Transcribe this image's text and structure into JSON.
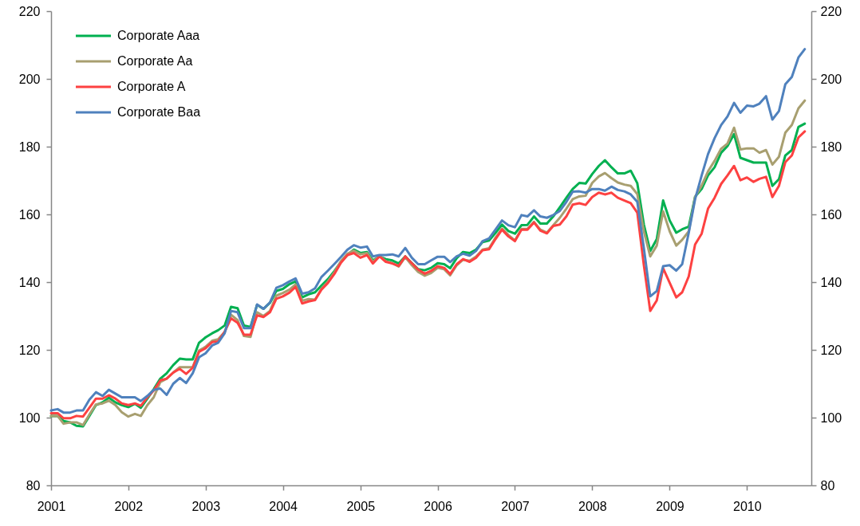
{
  "chart_data": {
    "type": "line",
    "x": [
      "2001-01",
      "2001-02",
      "2001-03",
      "2001-04",
      "2001-05",
      "2001-06",
      "2001-07",
      "2001-08",
      "2001-09",
      "2001-10",
      "2001-11",
      "2001-12",
      "2002-01",
      "2002-02",
      "2002-03",
      "2002-04",
      "2002-05",
      "2002-06",
      "2002-07",
      "2002-08",
      "2002-09",
      "2002-10",
      "2002-11",
      "2002-12",
      "2003-01",
      "2003-02",
      "2003-03",
      "2003-04",
      "2003-05",
      "2003-06",
      "2003-07",
      "2003-08",
      "2003-09",
      "2003-10",
      "2003-11",
      "2003-12",
      "2004-01",
      "2004-02",
      "2004-03",
      "2004-04",
      "2004-05",
      "2004-06",
      "2004-07",
      "2004-08",
      "2004-09",
      "2004-10",
      "2004-11",
      "2004-12",
      "2005-01",
      "2005-02",
      "2005-03",
      "2005-04",
      "2005-05",
      "2005-06",
      "2005-07",
      "2005-08",
      "2005-09",
      "2005-10",
      "2005-11",
      "2005-12",
      "2006-01",
      "2006-02",
      "2006-03",
      "2006-04",
      "2006-05",
      "2006-06",
      "2006-07",
      "2006-08",
      "2006-09",
      "2006-10",
      "2006-11",
      "2006-12",
      "2007-01",
      "2007-02",
      "2007-03",
      "2007-04",
      "2007-05",
      "2007-06",
      "2007-07",
      "2007-08",
      "2007-09",
      "2007-10",
      "2007-11",
      "2007-12",
      "2008-01",
      "2008-02",
      "2008-03",
      "2008-04",
      "2008-05",
      "2008-06",
      "2008-07",
      "2008-08",
      "2008-09",
      "2008-10",
      "2008-11",
      "2008-12",
      "2009-01",
      "2009-02",
      "2009-03",
      "2009-04",
      "2009-05",
      "2009-06",
      "2009-07",
      "2009-08",
      "2009-09",
      "2009-10",
      "2009-11",
      "2009-12",
      "2010-01",
      "2010-02",
      "2010-03",
      "2010-04",
      "2010-05",
      "2010-06",
      "2010-07",
      "2010-08",
      "2010-09",
      "2010-10"
    ],
    "series": [
      {
        "name": "Corporate Aaa",
        "color": "#00b050",
        "values": [
          100.5,
          100.5,
          99.0,
          98.6,
          97.6,
          97.4,
          100.5,
          103.7,
          104.5,
          105.9,
          104.5,
          103.7,
          103.1,
          104.1,
          102.9,
          105.6,
          108.4,
          111.5,
          113.1,
          115.5,
          117.4,
          117.2,
          117.2,
          122.1,
          123.7,
          124.9,
          125.8,
          127.2,
          132.7,
          132.3,
          127.2,
          126.8,
          133.3,
          132.1,
          133.9,
          137.4,
          138.0,
          139.4,
          140.2,
          135.5,
          136.4,
          137.0,
          139.0,
          140.9,
          143.3,
          146.0,
          148.0,
          149.6,
          148.6,
          148.9,
          146.4,
          147.6,
          146.8,
          146.4,
          145.5,
          147.6,
          145.6,
          143.8,
          143.5,
          144.2,
          145.6,
          145.3,
          144.1,
          147.1,
          148.9,
          148.6,
          149.6,
          151.8,
          152.3,
          154.5,
          157.0,
          155.1,
          154.3,
          156.8,
          156.9,
          159.4,
          157.3,
          157.3,
          159.4,
          162.1,
          164.9,
          167.5,
          169.3,
          169.1,
          171.9,
          174.3,
          176.0,
          173.9,
          172.1,
          172.1,
          172.9,
          169.2,
          157.0,
          149.2,
          152.7,
          164.1,
          158.2,
          154.6,
          155.6,
          156.4,
          165.2,
          167.5,
          171.5,
          173.9,
          178.2,
          180.2,
          183.7,
          176.7,
          176.0,
          175.3,
          175.3,
          175.3,
          168.4,
          170.4,
          177.4,
          179.0,
          185.8,
          186.8
        ]
      },
      {
        "name": "Corporate Aa",
        "color": "#a89f70",
        "values": [
          100.5,
          100.5,
          98.2,
          98.6,
          98.6,
          97.8,
          100.9,
          103.9,
          104.2,
          105.0,
          103.7,
          101.6,
          100.3,
          101.1,
          100.5,
          103.7,
          106.0,
          110.5,
          111.5,
          113.3,
          114.9,
          114.9,
          114.9,
          119.8,
          120.9,
          122.7,
          123.1,
          125.3,
          130.4,
          128.8,
          124.1,
          123.8,
          131.1,
          130.0,
          131.5,
          136.0,
          136.8,
          137.8,
          139.3,
          134.5,
          135.0,
          134.8,
          138.0,
          140.2,
          143.0,
          146.2,
          148.4,
          149.3,
          148.2,
          148.6,
          146.0,
          147.8,
          146.2,
          145.6,
          144.6,
          147.4,
          145.0,
          143.0,
          141.9,
          142.7,
          144.2,
          143.8,
          142.0,
          145.0,
          146.6,
          146.3,
          147.5,
          149.6,
          150.0,
          153.1,
          155.8,
          153.9,
          152.3,
          155.7,
          155.7,
          157.8,
          155.5,
          154.6,
          156.8,
          159.0,
          161.7,
          164.5,
          165.3,
          165.5,
          169.3,
          171.2,
          172.2,
          170.7,
          169.4,
          168.8,
          168.4,
          166.0,
          155.0,
          147.6,
          150.8,
          160.9,
          155.0,
          150.8,
          152.5,
          155.0,
          165.2,
          168.5,
          172.7,
          175.8,
          179.4,
          180.9,
          185.6,
          179.2,
          179.5,
          179.5,
          178.2,
          179.0,
          174.7,
          177.0,
          184.1,
          186.4,
          191.3,
          193.6
        ]
      },
      {
        "name": "Corporate A",
        "color": "#fd4141",
        "values": [
          101.3,
          101.3,
          99.8,
          99.8,
          100.5,
          100.3,
          102.9,
          105.6,
          105.6,
          106.6,
          105.6,
          104.2,
          103.7,
          104.2,
          103.5,
          106.0,
          108.0,
          111.0,
          111.5,
          113.3,
          114.4,
          112.9,
          114.7,
          119.4,
          120.5,
          122.3,
          122.5,
          125.3,
          129.3,
          128.0,
          124.5,
          124.5,
          130.2,
          129.7,
          131.1,
          135.1,
          135.8,
          136.9,
          138.6,
          133.7,
          134.3,
          134.7,
          137.8,
          139.8,
          142.5,
          145.7,
          148.0,
          148.6,
          147.2,
          148.0,
          145.5,
          147.6,
          146.0,
          145.5,
          144.8,
          147.6,
          145.6,
          143.7,
          142.5,
          143.3,
          144.7,
          144.2,
          142.4,
          145.3,
          146.8,
          146.0,
          147.2,
          149.4,
          149.7,
          152.7,
          155.5,
          153.5,
          152.1,
          155.5,
          155.5,
          157.6,
          155.2,
          154.4,
          156.6,
          157.0,
          159.4,
          162.9,
          163.3,
          162.8,
          165.1,
          166.4,
          165.9,
          166.4,
          164.9,
          164.1,
          163.3,
          160.5,
          145.0,
          131.5,
          134.6,
          144.1,
          139.8,
          135.5,
          137.0,
          141.7,
          151.1,
          154.3,
          161.7,
          164.9,
          169.0,
          171.5,
          174.3,
          170.1,
          170.9,
          169.6,
          170.5,
          171.1,
          165.1,
          168.4,
          175.4,
          177.4,
          182.7,
          184.5
        ]
      },
      {
        "name": "Corporate Baa",
        "color": "#4f81bd",
        "values": [
          102.1,
          102.5,
          101.5,
          101.5,
          102.1,
          102.1,
          105.3,
          107.5,
          106.4,
          108.2,
          107.1,
          106.0,
          106.0,
          106.0,
          104.9,
          106.4,
          108.2,
          108.6,
          106.7,
          110.0,
          111.7,
          110.2,
          113.1,
          117.8,
          119.0,
          121.3,
          122.1,
          124.9,
          131.5,
          131.1,
          126.4,
          126.4,
          133.4,
          132.1,
          134.0,
          138.3,
          139.1,
          140.2,
          141.1,
          136.6,
          137.0,
          138.2,
          141.5,
          143.4,
          145.4,
          147.4,
          149.6,
          150.9,
          150.2,
          150.5,
          147.6,
          148.0,
          148.0,
          148.2,
          147.6,
          150.1,
          147.2,
          145.3,
          145.3,
          146.4,
          147.5,
          147.5,
          145.9,
          147.6,
          148.4,
          147.8,
          149.2,
          152.1,
          152.9,
          155.5,
          158.2,
          156.8,
          156.2,
          159.8,
          159.4,
          161.2,
          159.4,
          159.0,
          159.8,
          161.0,
          163.7,
          166.7,
          166.8,
          166.4,
          167.5,
          167.5,
          167.0,
          168.2,
          167.2,
          166.8,
          165.9,
          163.7,
          150.0,
          135.8,
          137.4,
          144.7,
          145.0,
          143.4,
          145.3,
          154.6,
          164.5,
          171.5,
          177.8,
          182.5,
          186.4,
          188.9,
          192.9,
          190.0,
          192.1,
          191.9,
          192.7,
          194.9,
          188.0,
          190.5,
          198.4,
          200.6,
          206.3,
          208.8
        ]
      }
    ],
    "xlim": [
      "2001-01",
      "2010-11"
    ],
    "xticks": [
      "2001",
      "2002",
      "2003",
      "2004",
      "2005",
      "2006",
      "2007",
      "2008",
      "2009",
      "2010"
    ],
    "ylim": [
      80,
      220
    ],
    "yticks": [
      80,
      100,
      120,
      140,
      160,
      180,
      200,
      220
    ],
    "y2lim": [
      80,
      220
    ],
    "y2ticks": [
      80,
      100,
      120,
      140,
      160,
      180,
      200,
      220
    ],
    "legend": "top left"
  }
}
